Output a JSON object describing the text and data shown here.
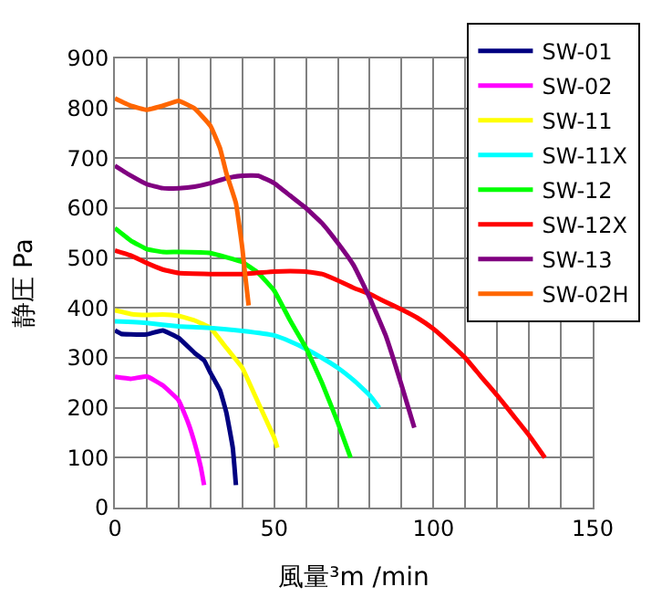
{
  "chart_data": {
    "type": "line",
    "xlabel": "風量³m /min",
    "ylabel": "静圧 Pa",
    "xlim": [
      0,
      150
    ],
    "ylim": [
      0,
      900
    ],
    "xticks": [
      0,
      {
        "value": 10,
        "label": null
      },
      {
        "value": 20,
        "label": null
      },
      {
        "value": 30,
        "label": null
      },
      {
        "value": 40,
        "label": null
      },
      50,
      {
        "value": 60,
        "label": null
      },
      {
        "value": 70,
        "label": null
      },
      {
        "value": 80,
        "label": null
      },
      {
        "value": 90,
        "label": null
      },
      100,
      {
        "value": 110,
        "label": null
      },
      {
        "value": 120,
        "label": null
      },
      {
        "value": 130,
        "label": null
      },
      {
        "value": 140,
        "label": null
      },
      150
    ],
    "yticks": [
      0,
      100,
      200,
      300,
      400,
      500,
      600,
      700,
      800,
      900
    ],
    "grid": true,
    "legend": "top right",
    "marker": "none",
    "line_style": "solid",
    "series": [
      {
        "name": "SW-01",
        "color": "#000080",
        "x": [
          0,
          2,
          5,
          10,
          15,
          20,
          25,
          28,
          30,
          33,
          35,
          37,
          38
        ],
        "values": [
          355,
          348,
          347,
          347,
          355,
          340,
          310,
          295,
          270,
          235,
          190,
          120,
          45
        ]
      },
      {
        "name": "SW-02",
        "color": "#ff00ff",
        "x": [
          0,
          5,
          10,
          15,
          20,
          23,
          25,
          27,
          28
        ],
        "values": [
          262,
          258,
          263,
          245,
          215,
          170,
          130,
          80,
          45
        ]
      },
      {
        "name": "SW-11",
        "color": "#ffff00",
        "x": [
          0,
          5,
          10,
          15,
          20,
          25,
          30,
          35,
          40,
          45,
          50,
          51
        ],
        "values": [
          395,
          388,
          386,
          387,
          384,
          375,
          360,
          320,
          280,
          210,
          140,
          120
        ]
      },
      {
        "name": "SW-11X",
        "color": "#00ffff",
        "x": [
          0,
          10,
          20,
          30,
          40,
          50,
          55,
          60,
          65,
          70,
          75,
          80,
          83
        ],
        "values": [
          373,
          370,
          363,
          360,
          354,
          345,
          333,
          318,
          300,
          280,
          255,
          225,
          200
        ]
      },
      {
        "name": "SW-12",
        "color": "#00ff00",
        "x": [
          0,
          5,
          10,
          15,
          20,
          30,
          40,
          45,
          50,
          55,
          60,
          65,
          70,
          74
        ],
        "values": [
          560,
          535,
          518,
          512,
          512,
          510,
          492,
          470,
          435,
          375,
          320,
          250,
          170,
          100
        ]
      },
      {
        "name": "SW-12X",
        "color": "#ff0000",
        "x": [
          0,
          5,
          10,
          15,
          20,
          30,
          40,
          50,
          55,
          60,
          65,
          70,
          75,
          80,
          85,
          90,
          95,
          100,
          105,
          110,
          115,
          120,
          125,
          130,
          135
        ],
        "values": [
          515,
          505,
          490,
          477,
          470,
          468,
          468,
          473,
          474,
          473,
          468,
          455,
          440,
          428,
          412,
          397,
          380,
          358,
          330,
          300,
          262,
          225,
          185,
          145,
          100
        ]
      },
      {
        "name": "SW-13",
        "color": "#800080",
        "x": [
          0,
          5,
          10,
          15,
          20,
          25,
          30,
          35,
          40,
          45,
          50,
          55,
          60,
          65,
          70,
          75,
          80,
          85,
          90,
          94
        ],
        "values": [
          685,
          665,
          648,
          640,
          640,
          643,
          650,
          660,
          665,
          665,
          650,
          625,
          600,
          570,
          530,
          485,
          420,
          345,
          245,
          160
        ]
      },
      {
        "name": "SW-02H",
        "color": "#ff6600",
        "x": [
          0,
          5,
          10,
          15,
          20,
          25,
          30,
          33,
          35,
          38,
          40,
          41,
          42
        ],
        "values": [
          820,
          805,
          797,
          805,
          815,
          800,
          765,
          720,
          670,
          610,
          520,
          460,
          405
        ]
      }
    ]
  }
}
